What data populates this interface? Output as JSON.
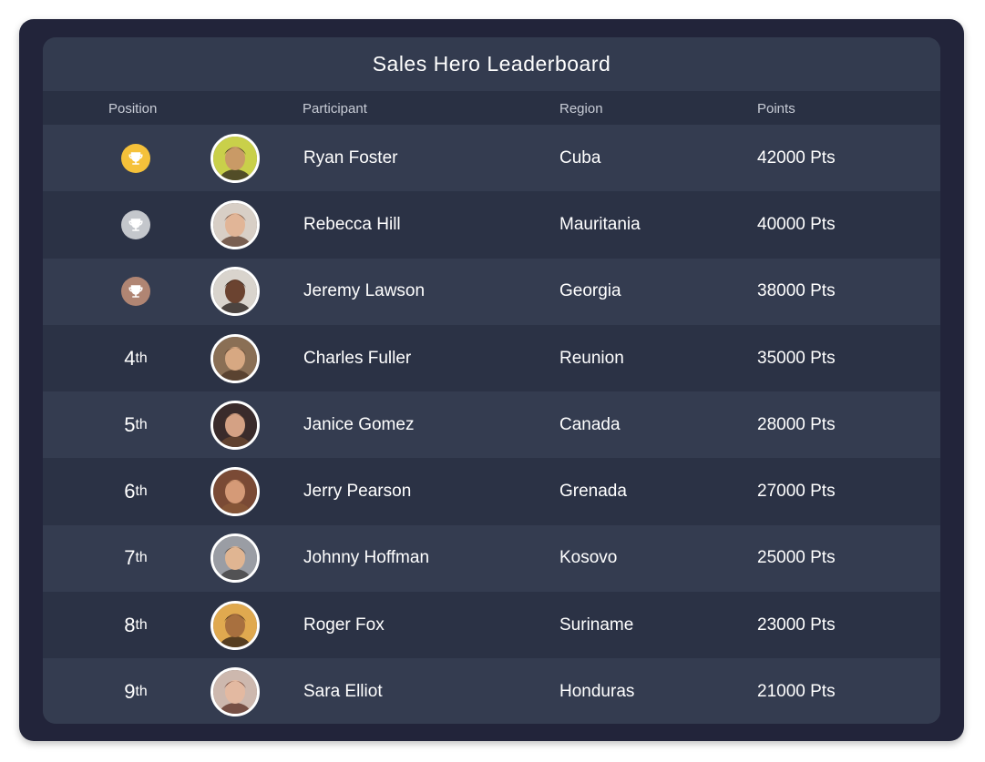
{
  "title": "Sales Hero Leaderboard",
  "columns": {
    "position": "Position",
    "participant": "Participant",
    "region": "Region",
    "points": "Points"
  },
  "colors": {
    "gold": "#f5c13a",
    "silver": "#c4c7cc",
    "bronze": "#b08573"
  },
  "rows": [
    {
      "rank": "",
      "trophy": "gold-trophy-icon",
      "name": "Ryan Foster",
      "region": "Cuba",
      "points": "42000 Pts",
      "skin": "#c99a66",
      "hair": "#2a221c",
      "bg": "#c9d04a"
    },
    {
      "rank": "",
      "trophy": "silver-trophy-icon",
      "name": "Rebecca Hill",
      "region": "Mauritania",
      "points": "40000 Pts",
      "skin": "#e1b597",
      "hair": "#5a3a2a",
      "bg": "#d8cfc6"
    },
    {
      "rank": "",
      "trophy": "bronze-trophy-icon",
      "name": "Jeremy Lawson",
      "region": "Georgia",
      "points": "38000 Pts",
      "skin": "#6b4330",
      "hair": "#1c1410",
      "bg": "#d9d4cd"
    },
    {
      "rank": "4",
      "suffix": "th",
      "name": "Charles Fuller",
      "region": "Reunion",
      "points": "35000 Pts",
      "skin": "#d7a882",
      "hair": "#4a3425",
      "bg": "#8a6f55"
    },
    {
      "rank": "5",
      "suffix": "th",
      "name": "Janice Gomez",
      "region": "Canada",
      "points": "28000 Pts",
      "skin": "#d4a184",
      "hair": "#6e4a32",
      "bg": "#3a2b2b"
    },
    {
      "rank": "6",
      "suffix": "th",
      "name": "Jerry Pearson",
      "region": "Grenada",
      "points": "27000 Pts",
      "skin": "#d59a77",
      "hair": "#8a5a38",
      "bg": "#7a4a35"
    },
    {
      "rank": "7",
      "suffix": "th",
      "name": "Johnny Hoffman",
      "region": "Kosovo",
      "points": "25000 Pts",
      "skin": "#e0b592",
      "hair": "#3a3a3a",
      "bg": "#9a9da4"
    },
    {
      "rank": "8",
      "suffix": "th",
      "name": "Roger Fox",
      "region": "Suriname",
      "points": "23000 Pts",
      "skin": "#a8703f",
      "hair": "#2a1b12",
      "bg": "#e0a94f"
    },
    {
      "rank": "9",
      "suffix": "th",
      "name": "Sara Elliot",
      "region": "Honduras",
      "points": "21000 Pts",
      "skin": "#e3b9a1",
      "hair": "#5a2e22",
      "bg": "#cdb8ae"
    }
  ]
}
